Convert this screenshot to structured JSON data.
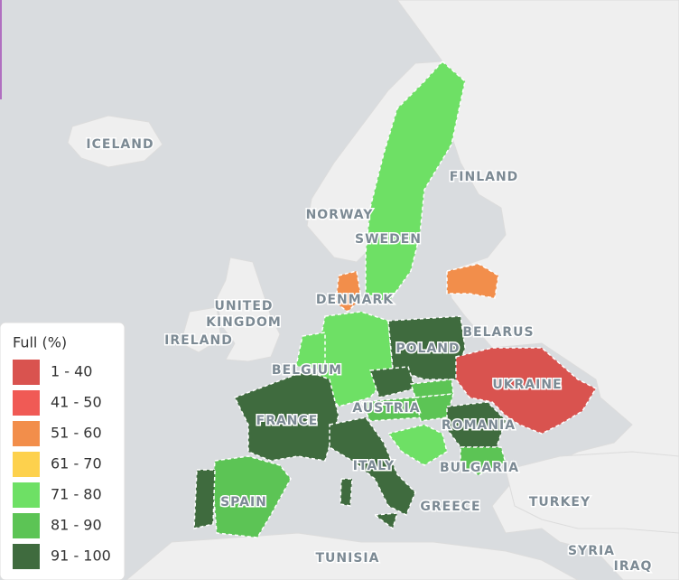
{
  "map_labels": [
    "ICELAND",
    "NORWAY",
    "SWEDEN",
    "FINLAND",
    "DENMARK",
    "UNITED",
    "KINGDOM",
    "IRELAND",
    "BELARUS",
    "POLAND",
    "BELGIUM",
    "UKRAINE",
    "FRANCE",
    "AUSTRIA",
    "ROMANIA",
    "ITALY",
    "BULGARIA",
    "SPAIN",
    "GREECE",
    "TURKEY",
    "TUNISIA",
    "SYRIA",
    "IRAQ"
  ],
  "legend": {
    "title": "Full (%)",
    "items": [
      {
        "label": "1 - 40",
        "color": "#d9534f"
      },
      {
        "label": "41 - 50",
        "color": "#f05a55"
      },
      {
        "label": "51 - 60",
        "color": "#f28e4b"
      },
      {
        "label": "61 - 70",
        "color": "#fdd14d"
      },
      {
        "label": "71 - 80",
        "color": "#6ee065"
      },
      {
        "label": "81 - 90",
        "color": "#5cc455"
      },
      {
        "label": "91 - 100",
        "color": "#3f6b3e"
      }
    ]
  }
}
